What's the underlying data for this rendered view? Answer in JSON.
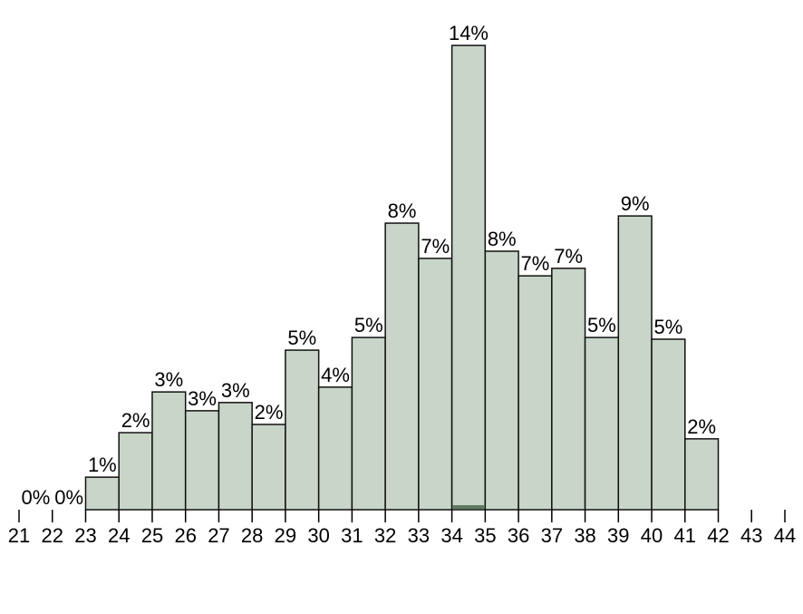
{
  "chart_data": {
    "type": "histogram",
    "bins": [
      21,
      22,
      23,
      24,
      25,
      26,
      27,
      28,
      29,
      30,
      31,
      32,
      33,
      34,
      35,
      36,
      37,
      38,
      39,
      40,
      41,
      42
    ],
    "values": [
      0,
      0,
      0.95,
      2.25,
      3.44,
      2.89,
      3.13,
      2.49,
      4.66,
      3.58,
      5.03,
      8.37,
      7.34,
      13.56,
      7.55,
      6.83,
      7.05,
      5.03,
      8.58,
      4.98,
      2.07
    ],
    "value_labels": [
      "0%",
      "0%",
      "1%",
      "2%",
      "3%",
      "3%",
      "3%",
      "2%",
      "5%",
      "4%",
      "5%",
      "8%",
      "7%",
      "14%",
      "8%",
      "7%",
      "7%",
      "5%",
      "9%",
      "5%",
      "2%"
    ],
    "color": "#c8d5c8",
    "xlim": [
      21,
      44
    ],
    "xticks": [
      21,
      22,
      23,
      24,
      25,
      26,
      27,
      28,
      29,
      30,
      31,
      32,
      33,
      34,
      35,
      36,
      37,
      38,
      39,
      40,
      41,
      42,
      43,
      44
    ],
    "ylim": [
      0,
      14
    ]
  }
}
